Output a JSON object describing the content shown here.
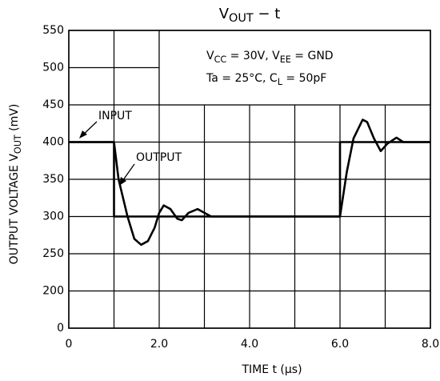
{
  "chart_data": {
    "type": "line",
    "title": [
      {
        "text": "V"
      },
      {
        "text": "OUT",
        "sub": true
      },
      {
        "text": " − t"
      }
    ],
    "y_label": [
      {
        "text": "OUTPUT VOLTAGE  V"
      },
      {
        "text": "OUT",
        "sub": true
      },
      {
        "text": " (mV)"
      }
    ],
    "x_label": "TIME   t   (μs)",
    "conditions": [
      [
        {
          "text": "V"
        },
        {
          "text": "CC",
          "sub": true
        },
        {
          "text": " = 30V, V"
        },
        {
          "text": "EE",
          "sub": true
        },
        {
          "text": " = GND"
        }
      ],
      [
        {
          "text": "Ta = 25°C, C"
        },
        {
          "text": "L",
          "sub": true
        },
        {
          "text": " = 50pF"
        }
      ]
    ],
    "xlim": [
      0,
      8
    ],
    "xticks": [
      0,
      {
        "value": 2,
        "label": "2.0"
      },
      {
        "value": 4,
        "label": "4.0"
      },
      {
        "value": 6,
        "label": "6.0"
      },
      {
        "value": 8,
        "label": "8.0"
      }
    ],
    "x_minor_grid": [
      1,
      3,
      5,
      7
    ],
    "ylim": [
      150,
      550
    ],
    "yticks": [
      {
        "value": 150,
        "label": "0"
      },
      200,
      250,
      300,
      350,
      400,
      450,
      500,
      550
    ],
    "grid": true,
    "series": [
      {
        "name": "INPUT",
        "color": "#000000",
        "x": [
          0,
          1,
          1,
          6,
          6,
          8
        ],
        "values": [
          400,
          400,
          300,
          300,
          400,
          400
        ]
      },
      {
        "name": "OUTPUT",
        "color": "#000000",
        "x": [
          0,
          1,
          1.1,
          1.3,
          1.45,
          1.6,
          1.75,
          1.9,
          2.0,
          2.1,
          2.25,
          2.4,
          2.5,
          2.65,
          2.85,
          3.0,
          3.15,
          6.0,
          6.15,
          6.3,
          6.5,
          6.6,
          6.75,
          6.9,
          7.05,
          7.25,
          7.4,
          8
        ],
        "values": [
          400,
          400,
          350,
          300,
          270,
          262,
          267,
          285,
          305,
          315,
          310,
          297,
          295,
          305,
          310,
          305,
          300,
          300,
          360,
          405,
          430,
          427,
          405,
          388,
          398,
          406,
          400,
          400
        ]
      }
    ]
  }
}
